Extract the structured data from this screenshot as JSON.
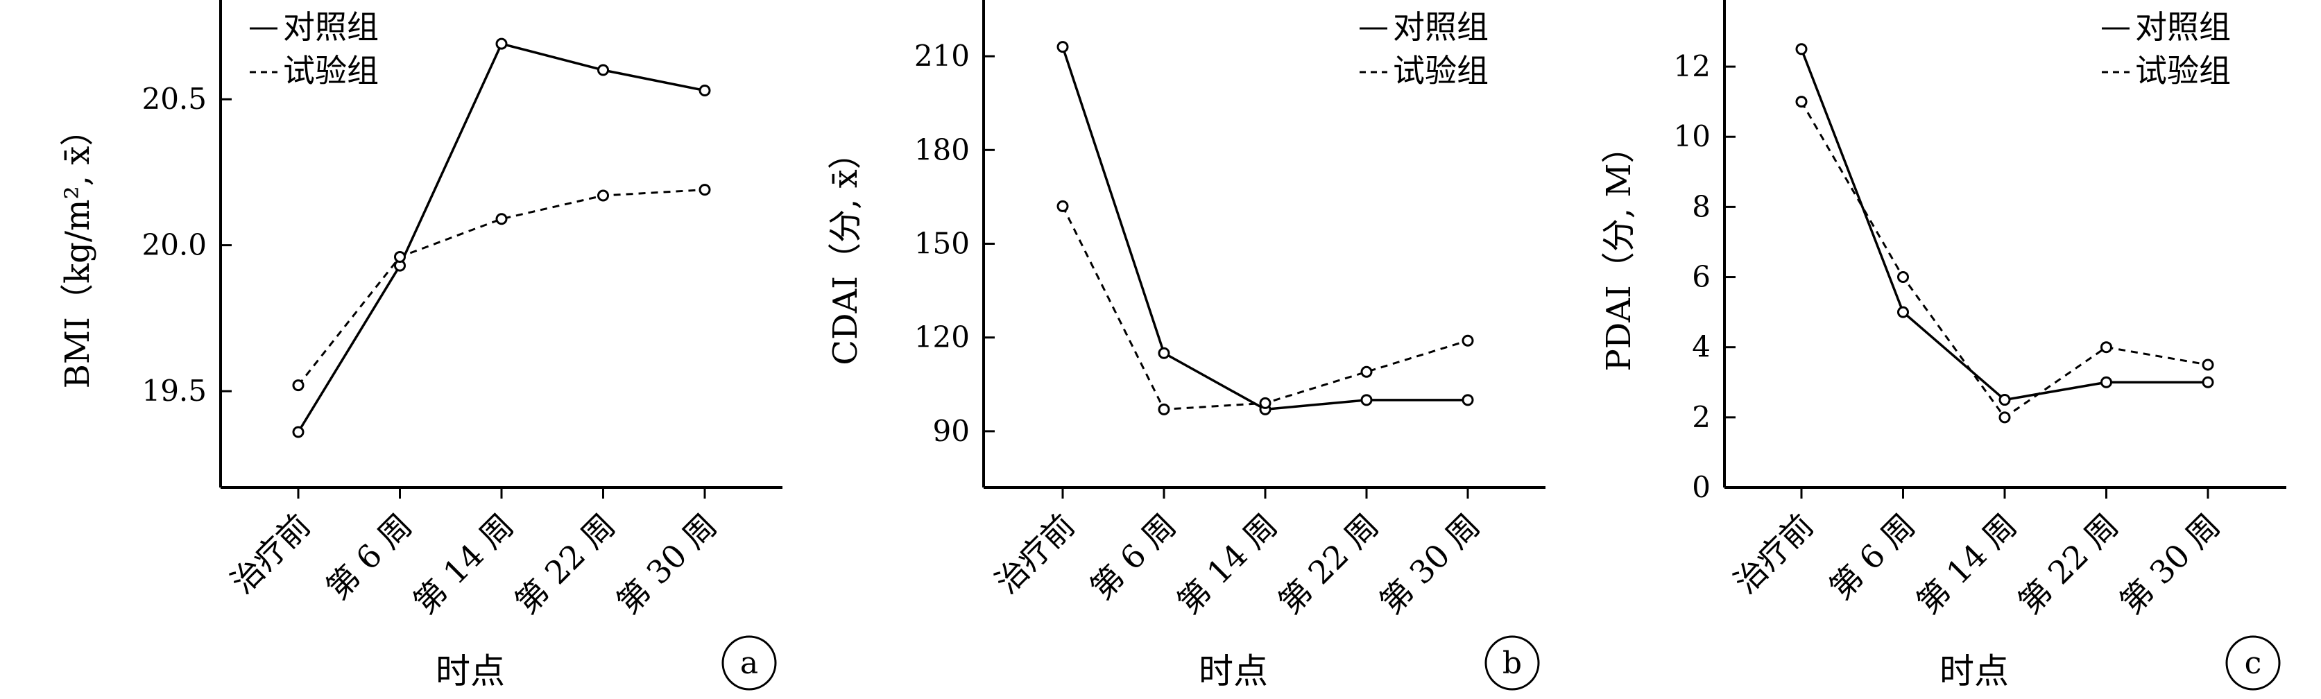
{
  "chart_data": [
    {
      "type": "line",
      "panel_label": "a",
      "xlabel": "时点",
      "ylabel": "BMI（kg/m², x̄）",
      "categories": [
        "治疗前",
        "第 6 周",
        "第 14 周",
        "第 22 周",
        "第 30 周"
      ],
      "ylim": [
        19.17,
        20.84
      ],
      "yticks": [
        19.5,
        20.0,
        20.5
      ],
      "ytick_labels": [
        "19.5",
        "20.0",
        "20.5"
      ],
      "grid": false,
      "legend_position": "top-left",
      "series": [
        {
          "name": "对照组",
          "style": "solid",
          "values": [
            19.36,
            19.93,
            20.69,
            20.6,
            20.53
          ]
        },
        {
          "name": "试验组",
          "style": "dashed",
          "values": [
            19.52,
            19.96,
            20.09,
            20.17,
            20.19
          ]
        }
      ]
    },
    {
      "type": "line",
      "panel_label": "b",
      "xlabel": "时点",
      "ylabel": "CDAI（分, x̄）",
      "categories": [
        "治疗前",
        "第 6 周",
        "第 14 周",
        "第 22 周",
        "第 30 周"
      ],
      "ylim": [
        72,
        228
      ],
      "yticks": [
        90,
        120,
        150,
        180,
        210
      ],
      "ytick_labels": [
        "90",
        "120",
        "150",
        "180",
        "210"
      ],
      "grid": false,
      "legend_position": "top-right",
      "series": [
        {
          "name": "对照组",
          "style": "solid",
          "values": [
            213,
            115,
            97,
            100,
            100
          ]
        },
        {
          "name": "试验组",
          "style": "dashed",
          "values": [
            162,
            97,
            99,
            109,
            119
          ]
        }
      ]
    },
    {
      "type": "line",
      "panel_label": "c",
      "xlabel": "时点",
      "ylabel": "PDAI（分, M）",
      "categories": [
        "治疗前",
        "第 6 周",
        "第 14 周",
        "第 22 周",
        "第 30 周"
      ],
      "ylim": [
        0,
        13.9
      ],
      "yticks": [
        0,
        2,
        4,
        6,
        8,
        10,
        12
      ],
      "ytick_labels": [
        "0",
        "2",
        "4",
        "6",
        "8",
        "10",
        "12"
      ],
      "grid": false,
      "legend_position": "top-right",
      "series": [
        {
          "name": "对照组",
          "style": "solid",
          "values": [
            12.5,
            5.0,
            2.5,
            3.0,
            3.0
          ]
        },
        {
          "name": "试验组",
          "style": "dashed",
          "values": [
            11.0,
            6.0,
            2.0,
            4.0,
            3.5
          ]
        }
      ]
    }
  ]
}
